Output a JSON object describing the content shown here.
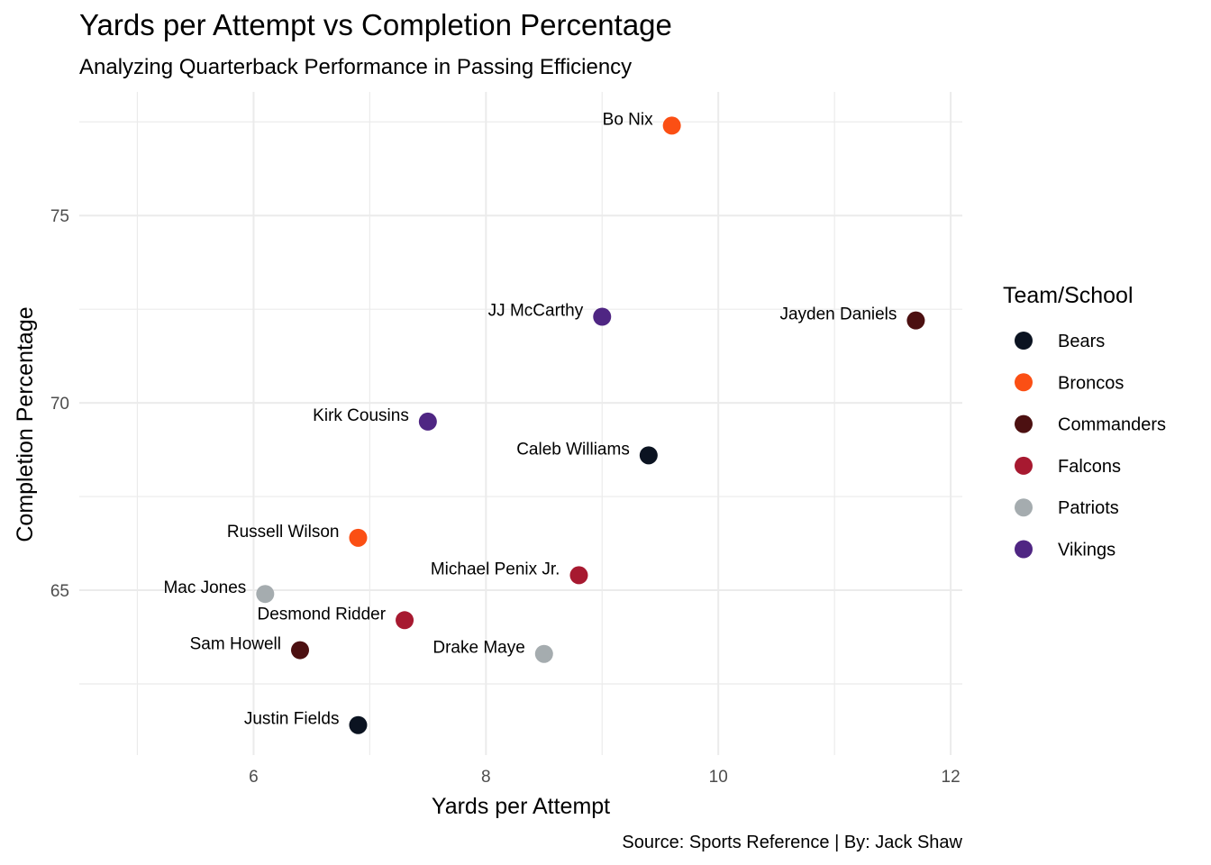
{
  "chart_data": {
    "type": "scatter",
    "title": "Yards per Attempt vs Completion Percentage",
    "subtitle": "Analyzing Quarterback Performance in Passing Efficiency",
    "xlabel": "Yards per Attempt",
    "ylabel": "Completion Percentage",
    "caption": "Source: Sports Reference | By: Jack Shaw",
    "xlim": [
      4.5,
      12.1
    ],
    "ylim": [
      60.6,
      78.3
    ],
    "x_ticks": [
      6,
      8,
      10,
      12
    ],
    "y_ticks": [
      65,
      70,
      75
    ],
    "x_minor": [
      5,
      7,
      9,
      11
    ],
    "y_minor": [
      62.5,
      67.5,
      72.5,
      77.5
    ],
    "grid": true,
    "legend_title": "Team/School",
    "legend_position": "right",
    "legend": [
      {
        "name": "Bears",
        "color": "#0B1321"
      },
      {
        "name": "Broncos",
        "color": "#FB4F14"
      },
      {
        "name": "Commanders",
        "color": "#4C1011"
      },
      {
        "name": "Falcons",
        "color": "#A71930"
      },
      {
        "name": "Patriots",
        "color": "#A5ACAF"
      },
      {
        "name": "Vikings",
        "color": "#4F2683"
      }
    ],
    "points": [
      {
        "label": "Bo Nix",
        "team": "Broncos",
        "x": 9.6,
        "y": 77.4
      },
      {
        "label": "JJ McCarthy",
        "team": "Vikings",
        "x": 9.0,
        "y": 72.3
      },
      {
        "label": "Jayden Daniels",
        "team": "Commanders",
        "x": 11.7,
        "y": 72.2
      },
      {
        "label": "Kirk Cousins",
        "team": "Vikings",
        "x": 7.5,
        "y": 69.5
      },
      {
        "label": "Caleb Williams",
        "team": "Bears",
        "x": 9.4,
        "y": 68.6
      },
      {
        "label": "Russell Wilson",
        "team": "Broncos",
        "x": 6.9,
        "y": 66.4
      },
      {
        "label": "Michael Penix Jr.",
        "team": "Falcons",
        "x": 8.8,
        "y": 65.4
      },
      {
        "label": "Mac Jones",
        "team": "Patriots",
        "x": 6.1,
        "y": 64.9
      },
      {
        "label": "Desmond Ridder",
        "team": "Falcons",
        "x": 7.3,
        "y": 64.2
      },
      {
        "label": "Sam Howell",
        "team": "Commanders",
        "x": 6.4,
        "y": 63.4
      },
      {
        "label": "Drake Maye",
        "team": "Patriots",
        "x": 8.5,
        "y": 63.3
      },
      {
        "label": "Justin Fields",
        "team": "Bears",
        "x": 6.9,
        "y": 61.4
      }
    ]
  }
}
